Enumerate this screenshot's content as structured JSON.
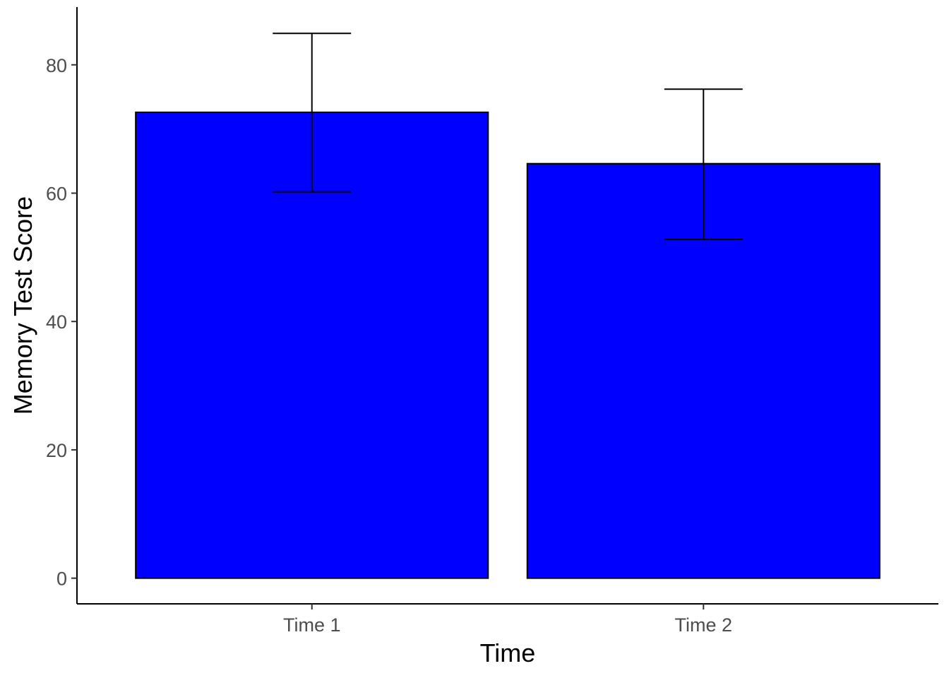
{
  "chart_data": {
    "type": "bar",
    "title": "",
    "xlabel": "Time",
    "ylabel": "Memory Test Score",
    "categories": [
      "Time 1",
      "Time 2"
    ],
    "values": [
      72.6,
      64.6
    ],
    "error_lower": [
      60.2,
      52.8
    ],
    "error_upper": [
      84.9,
      76.2
    ],
    "ylim": [
      -4,
      89
    ],
    "yticks": [
      0,
      20,
      40,
      60,
      80
    ],
    "grid": false,
    "legend": "none",
    "bar_color": "#0000ff",
    "bar_outline_color": "#000000"
  }
}
